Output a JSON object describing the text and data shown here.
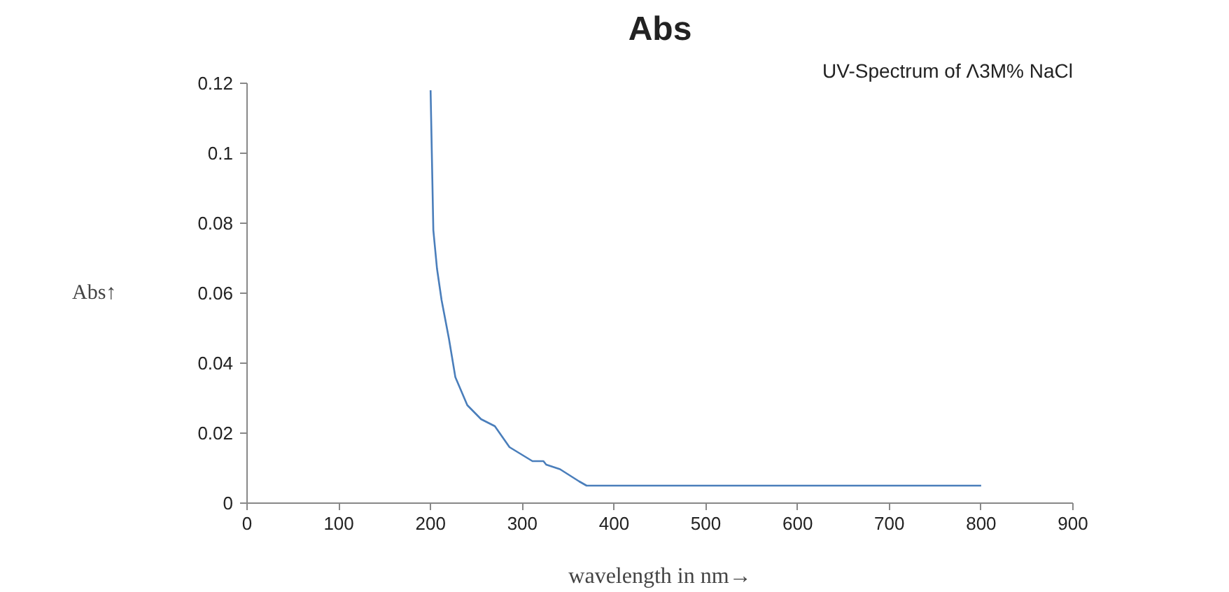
{
  "chart_data": {
    "type": "line",
    "title": "Abs",
    "xlabel": "wavelength in nm→",
    "ylabel": "Abs↑",
    "annotations": [
      "UV-Spectrum of Λ3M% NaCl"
    ],
    "x": [
      200,
      203,
      207,
      212,
      220,
      227,
      240,
      255,
      270,
      286,
      311,
      323,
      326,
      341,
      362,
      370,
      800
    ],
    "series": [
      {
        "color": "#4a7ebb",
        "values": [
          0.118,
          0.078,
          0.067,
          0.058,
          0.047,
          0.036,
          0.028,
          0.024,
          0.022,
          0.016,
          0.012,
          0.012,
          0.011,
          0.0097,
          0.0062,
          0.005,
          0.005
        ]
      }
    ],
    "xlim": [
      0,
      900
    ],
    "xticks": [
      0,
      100,
      200,
      300,
      400,
      500,
      600,
      700,
      800,
      900
    ],
    "ylim": [
      0,
      0.12
    ],
    "yticks": [
      0,
      0.02,
      0.04,
      0.06,
      0.08,
      0.1,
      0.12
    ],
    "grid": false
  }
}
